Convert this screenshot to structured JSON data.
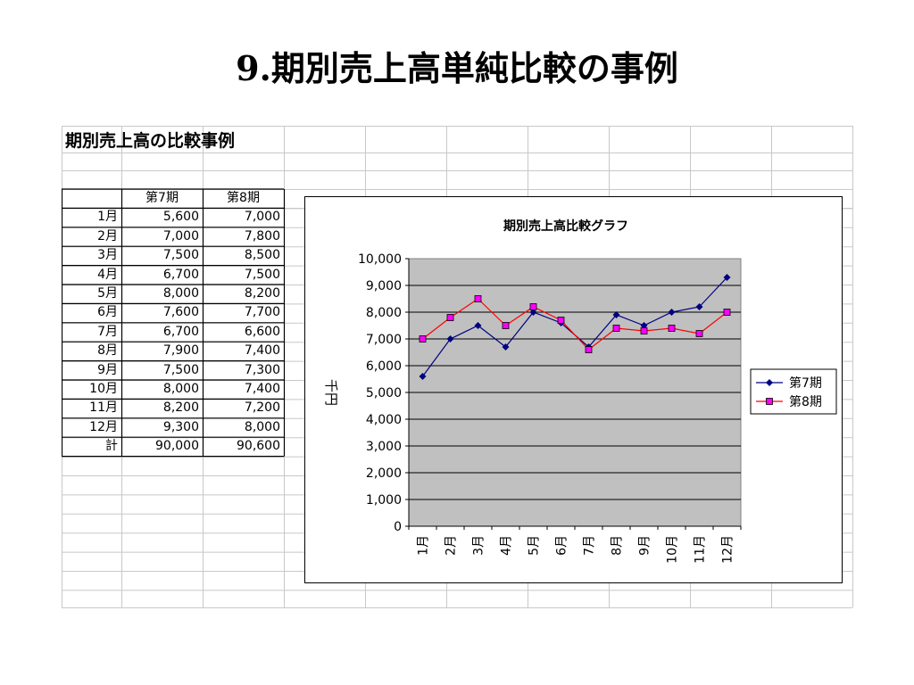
{
  "slide": {
    "title": "9.期別売上高単純比較の事例"
  },
  "sheet": {
    "heading": "期別売上高の比較事例",
    "table": {
      "columns": [
        "",
        "第7期",
        "第8期"
      ],
      "rows": [
        {
          "label": "1月",
          "p7": "5,600",
          "p8": "7,000"
        },
        {
          "label": "2月",
          "p7": "7,000",
          "p8": "7,800"
        },
        {
          "label": "3月",
          "p7": "7,500",
          "p8": "8,500"
        },
        {
          "label": "4月",
          "p7": "6,700",
          "p8": "7,500"
        },
        {
          "label": "5月",
          "p7": "8,000",
          "p8": "8,200"
        },
        {
          "label": "6月",
          "p7": "7,600",
          "p8": "7,700"
        },
        {
          "label": "7月",
          "p7": "6,700",
          "p8": "6,600"
        },
        {
          "label": "8月",
          "p7": "7,900",
          "p8": "7,400"
        },
        {
          "label": "9月",
          "p7": "7,500",
          "p8": "7,300"
        },
        {
          "label": "10月",
          "p7": "8,000",
          "p8": "7,400"
        },
        {
          "label": "11月",
          "p7": "8,200",
          "p8": "7,200"
        },
        {
          "label": "12月",
          "p7": "9,300",
          "p8": "8,000"
        },
        {
          "label": "計",
          "p7": "90,000",
          "p8": "90,600"
        }
      ]
    }
  },
  "chart_data": {
    "type": "line",
    "title": "期別売上高比較グラフ",
    "xlabel": "",
    "ylabel": "千円",
    "categories": [
      "1月",
      "2月",
      "3月",
      "4月",
      "5月",
      "6月",
      "7月",
      "8月",
      "9月",
      "10月",
      "11月",
      "12月"
    ],
    "series": [
      {
        "name": "第7期",
        "values": [
          5600,
          7000,
          7500,
          6700,
          8000,
          7600,
          6700,
          7900,
          7500,
          8000,
          8200,
          9300
        ],
        "color": "#000080",
        "marker": "diamond"
      },
      {
        "name": "第8期",
        "values": [
          7000,
          7800,
          8500,
          7500,
          8200,
          7700,
          6600,
          7400,
          7300,
          7400,
          7200,
          8000
        ],
        "color": "#ff0000",
        "marker": "square",
        "marker_fill": "#ff00ff"
      }
    ],
    "ylim": [
      0,
      10000
    ],
    "yticks": [
      "0",
      "1,000",
      "2,000",
      "3,000",
      "4,000",
      "5,000",
      "6,000",
      "7,000",
      "8,000",
      "9,000",
      "10,000"
    ],
    "grid": true,
    "plot_background": "#c0c0c0",
    "legend": "right"
  }
}
